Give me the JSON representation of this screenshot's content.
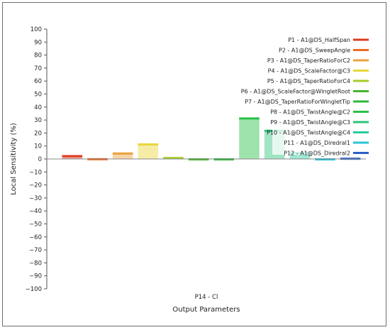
{
  "chart_data": {
    "type": "bar",
    "title": "",
    "xlabel": "Output Parameters",
    "ylabel": "Local Sensitivity (%)",
    "ylim": [
      -100,
      100
    ],
    "ytick_step": 10,
    "categories": [
      "P14 - Cl"
    ],
    "grid": false,
    "legend_position": "top-right",
    "series": [
      {
        "name": "P1 - A1@DS_HalfSpan",
        "values": [
          3
        ],
        "color": "#dc3c1e"
      },
      {
        "name": "P2 - A1@DS_SweepAngle",
        "values": [
          -1
        ],
        "color": "#ee6a23"
      },
      {
        "name": "P3 - A1@DS_TaperRatioForC2",
        "values": [
          5
        ],
        "color": "#e8a23c"
      },
      {
        "name": "P4 - A1@DS_ScaleFactor@C3",
        "values": [
          12
        ],
        "color": "#e8d63a"
      },
      {
        "name": "P5 - A1@DS_TaperRatioForC4",
        "values": [
          1.5
        ],
        "color": "#a5cc28"
      },
      {
        "name": "P6 - A1@DS_ScaleFactor@WingletRoot",
        "values": [
          0.5
        ],
        "color": "#46b52c"
      },
      {
        "name": "P7 - A1@DS_TaperRatioForWingletTip",
        "values": [
          0.5
        ],
        "color": "#2cb83a"
      },
      {
        "name": "P8 - A1@DS_TwistAngle@C2",
        "values": [
          32
        ],
        "color": "#2ac048"
      },
      {
        "name": "P9 - A1@DS_TwistAngle@C3",
        "values": [
          22.5
        ],
        "color": "#2cc47a"
      },
      {
        "name": "P10 - A1@DS_TwistAngle@C4",
        "values": [
          5.5
        ],
        "color": "#28cca0"
      },
      {
        "name": "P11 - A1@DS_Diredral1",
        "values": [
          0.5
        ],
        "color": "#28c4d6"
      },
      {
        "name": "P12 - A1@DS_Diredral2",
        "values": [
          1
        ],
        "color": "#2a5fc6"
      }
    ]
  }
}
